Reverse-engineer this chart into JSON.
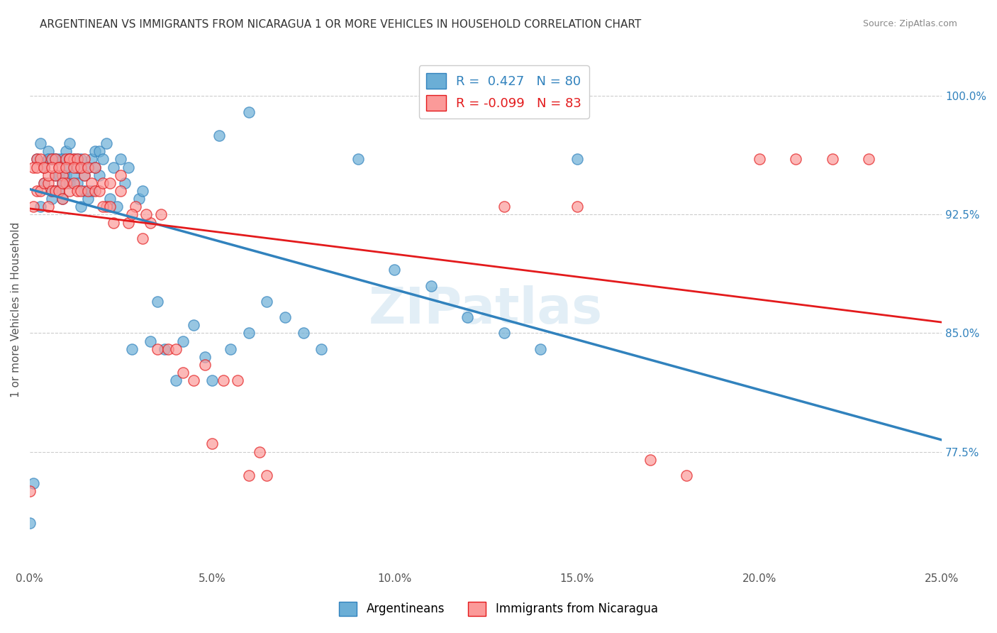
{
  "title": "ARGENTINEAN VS IMMIGRANTS FROM NICARAGUA 1 OR MORE VEHICLES IN HOUSEHOLD CORRELATION CHART",
  "source": "Source: ZipAtlas.com",
  "ylabel": "1 or more Vehicles in Household",
  "ytick_labels": [
    "100.0%",
    "92.5%",
    "85.0%",
    "77.5%"
  ],
  "ytick_values": [
    1.0,
    0.925,
    0.85,
    0.775
  ],
  "xmin": 0.0,
  "xmax": 0.25,
  "ymin": 0.7,
  "ymax": 1.03,
  "blue_R": 0.427,
  "blue_N": 80,
  "pink_R": -0.099,
  "pink_N": 83,
  "legend_label_blue": "Argentineans",
  "legend_label_pink": "Immigrants from Nicaragua",
  "blue_color": "#6baed6",
  "pink_color": "#fb9a99",
  "line_blue_color": "#3182bd",
  "line_pink_color": "#e31a1c",
  "blue_x": [
    0.001,
    0.003,
    0.004,
    0.004,
    0.005,
    0.005,
    0.006,
    0.006,
    0.006,
    0.007,
    0.007,
    0.007,
    0.008,
    0.008,
    0.008,
    0.009,
    0.009,
    0.01,
    0.01,
    0.01,
    0.011,
    0.011,
    0.012,
    0.012,
    0.013,
    0.013,
    0.014,
    0.014,
    0.015,
    0.015,
    0.016,
    0.016,
    0.017,
    0.017,
    0.018,
    0.018,
    0.019,
    0.019,
    0.02,
    0.021,
    0.022,
    0.023,
    0.024,
    0.025,
    0.026,
    0.027,
    0.028,
    0.03,
    0.031,
    0.033,
    0.035,
    0.037,
    0.04,
    0.042,
    0.045,
    0.048,
    0.05,
    0.052,
    0.055,
    0.06,
    0.0,
    0.002,
    0.003,
    0.005,
    0.007,
    0.009,
    0.011,
    0.013,
    0.06,
    0.065,
    0.07,
    0.075,
    0.08,
    0.09,
    0.1,
    0.11,
    0.12,
    0.13,
    0.14,
    0.15
  ],
  "blue_y": [
    0.755,
    0.93,
    0.945,
    0.955,
    0.96,
    0.965,
    0.935,
    0.94,
    0.96,
    0.94,
    0.95,
    0.96,
    0.94,
    0.95,
    0.96,
    0.935,
    0.945,
    0.95,
    0.955,
    0.965,
    0.945,
    0.97,
    0.95,
    0.96,
    0.945,
    0.955,
    0.93,
    0.96,
    0.94,
    0.95,
    0.935,
    0.955,
    0.94,
    0.96,
    0.955,
    0.965,
    0.95,
    0.965,
    0.96,
    0.97,
    0.935,
    0.955,
    0.93,
    0.96,
    0.945,
    0.955,
    0.84,
    0.935,
    0.94,
    0.845,
    0.87,
    0.84,
    0.82,
    0.845,
    0.855,
    0.835,
    0.82,
    0.975,
    0.84,
    0.85,
    0.73,
    0.96,
    0.97,
    0.96,
    0.96,
    0.96,
    0.96,
    0.96,
    0.99,
    0.87,
    0.86,
    0.85,
    0.84,
    0.96,
    0.89,
    0.88,
    0.86,
    0.85,
    0.84,
    0.96
  ],
  "pink_x": [
    0.001,
    0.002,
    0.003,
    0.004,
    0.004,
    0.005,
    0.005,
    0.006,
    0.006,
    0.007,
    0.007,
    0.008,
    0.008,
    0.009,
    0.009,
    0.01,
    0.01,
    0.011,
    0.011,
    0.012,
    0.012,
    0.013,
    0.013,
    0.014,
    0.015,
    0.016,
    0.017,
    0.018,
    0.019,
    0.02,
    0.021,
    0.022,
    0.023,
    0.025,
    0.027,
    0.029,
    0.031,
    0.033,
    0.035,
    0.038,
    0.04,
    0.042,
    0.045,
    0.048,
    0.05,
    0.053,
    0.057,
    0.06,
    0.063,
    0.065,
    0.002,
    0.003,
    0.005,
    0.007,
    0.009,
    0.011,
    0.013,
    0.015,
    0.13,
    0.15,
    0.17,
    0.18,
    0.0,
    0.001,
    0.002,
    0.004,
    0.006,
    0.008,
    0.01,
    0.012,
    0.014,
    0.016,
    0.018,
    0.02,
    0.022,
    0.025,
    0.028,
    0.032,
    0.036,
    0.2,
    0.21,
    0.22,
    0.23
  ],
  "pink_y": [
    0.93,
    0.94,
    0.94,
    0.945,
    0.955,
    0.93,
    0.945,
    0.94,
    0.96,
    0.94,
    0.96,
    0.94,
    0.955,
    0.935,
    0.95,
    0.945,
    0.96,
    0.94,
    0.96,
    0.945,
    0.96,
    0.94,
    0.955,
    0.94,
    0.95,
    0.94,
    0.945,
    0.94,
    0.94,
    0.945,
    0.93,
    0.945,
    0.92,
    0.95,
    0.92,
    0.93,
    0.91,
    0.92,
    0.84,
    0.84,
    0.84,
    0.825,
    0.82,
    0.83,
    0.78,
    0.82,
    0.82,
    0.76,
    0.775,
    0.76,
    0.96,
    0.96,
    0.95,
    0.95,
    0.945,
    0.96,
    0.96,
    0.96,
    0.93,
    0.93,
    0.77,
    0.76,
    0.75,
    0.955,
    0.955,
    0.955,
    0.955,
    0.955,
    0.955,
    0.955,
    0.955,
    0.955,
    0.955,
    0.93,
    0.93,
    0.94,
    0.925,
    0.925,
    0.925,
    0.96,
    0.96,
    0.96,
    0.96
  ]
}
